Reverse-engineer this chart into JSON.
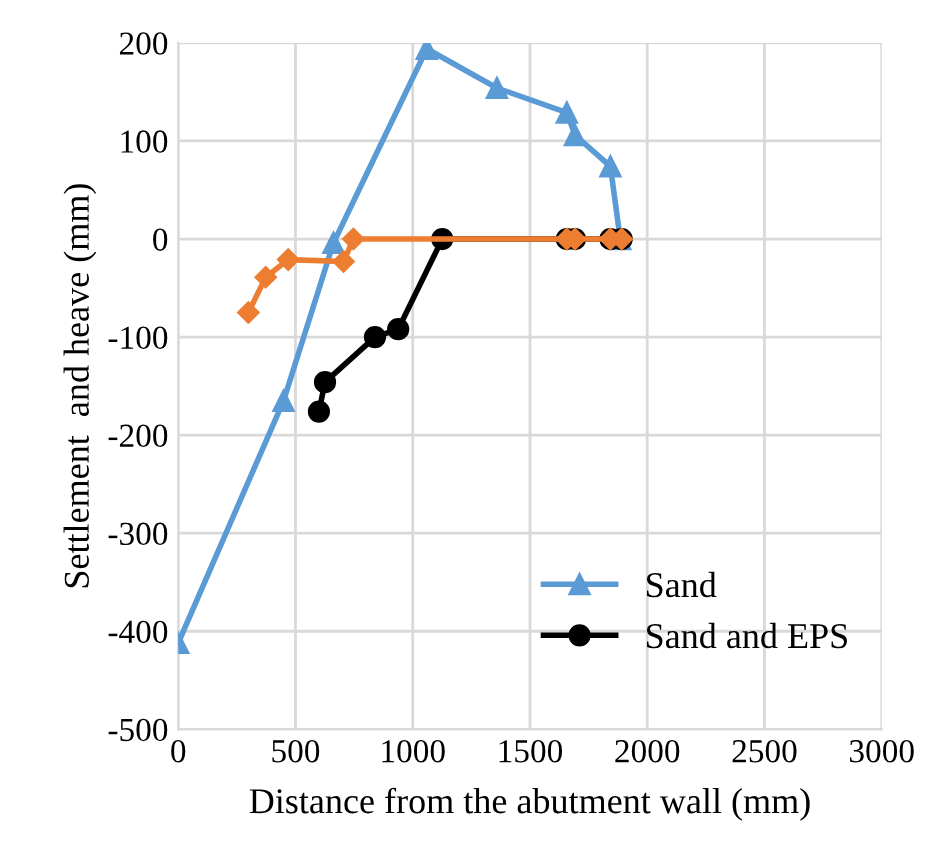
{
  "chart_data": {
    "type": "line",
    "xlabel": "Distance from the abutment wall (mm)",
    "ylabel": "Settlement  and heave (mm)",
    "xlim": [
      0,
      3000
    ],
    "xticks": [
      0,
      500,
      1000,
      1500,
      2000,
      2500,
      3000
    ],
    "ylim": [
      -500,
      200
    ],
    "yticks": [
      -500,
      -400,
      -300,
      -200,
      -100,
      0,
      100,
      200
    ],
    "grid": true,
    "legend": "bottom right",
    "line_style": "solid",
    "series": [
      {
        "name": "Sand",
        "color": "#5b9bd5",
        "marker": "triangle",
        "x": [
          0,
          449,
          662,
          1060,
          1359,
          1657,
          1692,
          1843,
          1885
        ],
        "values": [
          -412,
          -165,
          -4,
          194,
          154,
          129,
          106,
          74,
          0
        ]
      },
      {
        "name": "Sand and EPS",
        "color": "#000000",
        "marker": "circle",
        "x": [
          600,
          626,
          839,
          938,
          1126,
          1657,
          1692,
          1843,
          1891
        ],
        "values": [
          -176,
          -146,
          -100,
          -92,
          0,
          0,
          0,
          0,
          0
        ]
      },
      {
        "color": "#ed7d31",
        "marker": "diamond",
        "x": [
          299,
          373,
          469,
          705,
          747,
          1657,
          1692,
          1843,
          1891
        ],
        "values": [
          -75,
          -39,
          -21,
          -23,
          0,
          0,
          0,
          0,
          0
        ]
      }
    ]
  }
}
